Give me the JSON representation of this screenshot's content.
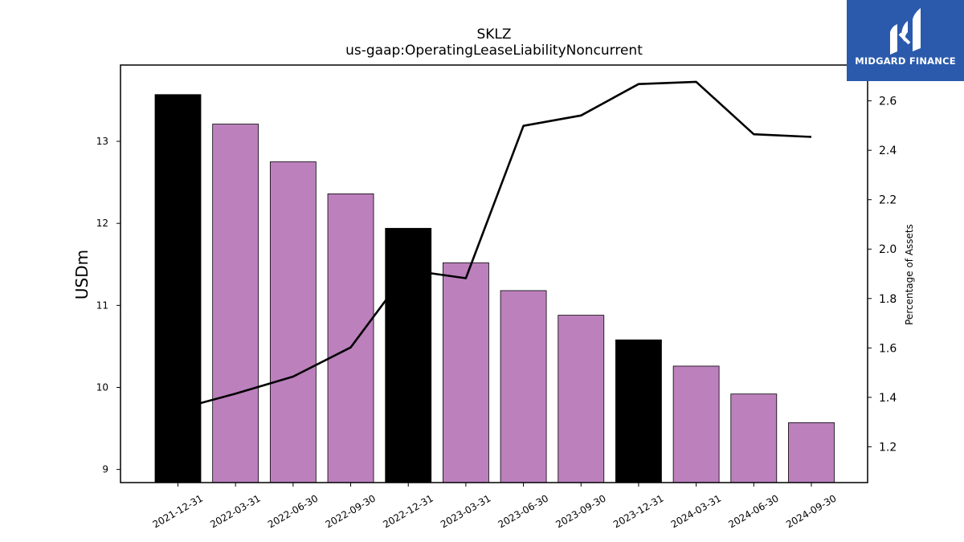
{
  "chart_data": {
    "type": "bar",
    "title": "SKLZ",
    "subtitle": "us-gaap:OperatingLeaseLiabilityNoncurrent",
    "ylabel": "USDm",
    "y2label": "Percentage of Assets",
    "categories": [
      "2021-12-31",
      "2022-03-31",
      "2022-06-30",
      "2022-09-30",
      "2022-12-31",
      "2023-03-31",
      "2023-06-30",
      "2023-09-30",
      "2023-12-31",
      "2024-03-31",
      "2024-06-30",
      "2024-09-30"
    ],
    "series": [
      {
        "type": "bar",
        "axis": "left",
        "values": [
          13.57,
          13.21,
          12.75,
          12.36,
          11.94,
          11.52,
          11.18,
          10.88,
          10.58,
          10.26,
          9.92,
          9.57
        ],
        "colors": [
          "#000000",
          "#bc80bd",
          "#bc80bd",
          "#bc80bd",
          "#000000",
          "#bc80bd",
          "#bc80bd",
          "#bc80bd",
          "#000000",
          "#bc80bd",
          "#bc80bd",
          "#bc80bd"
        ]
      },
      {
        "type": "line",
        "axis": "right",
        "color": "#000000",
        "values": [
          1.352,
          1.415,
          1.484,
          1.602,
          1.915,
          1.882,
          2.499,
          2.541,
          2.668,
          2.677,
          2.465,
          2.454
        ]
      }
    ],
    "ylim": [
      8.84,
      13.93
    ],
    "y_ticks": [
      9,
      10,
      11,
      12,
      13
    ],
    "y2lim": [
      1.055,
      2.745
    ],
    "y2_ticks": [
      1.2,
      1.4,
      1.6,
      1.8,
      2.0,
      2.2,
      2.4,
      2.6
    ],
    "y2_tick_labels": [
      "1.2",
      "1.4",
      "1.6",
      "1.8",
      "2.0",
      "2.2",
      "2.4",
      "2.6"
    ],
    "grid": false,
    "legend": "none"
  },
  "logo": {
    "text": "MIDGARD FINANCE",
    "background": "#2b5aad",
    "icon": "midgard-logo-icon"
  }
}
